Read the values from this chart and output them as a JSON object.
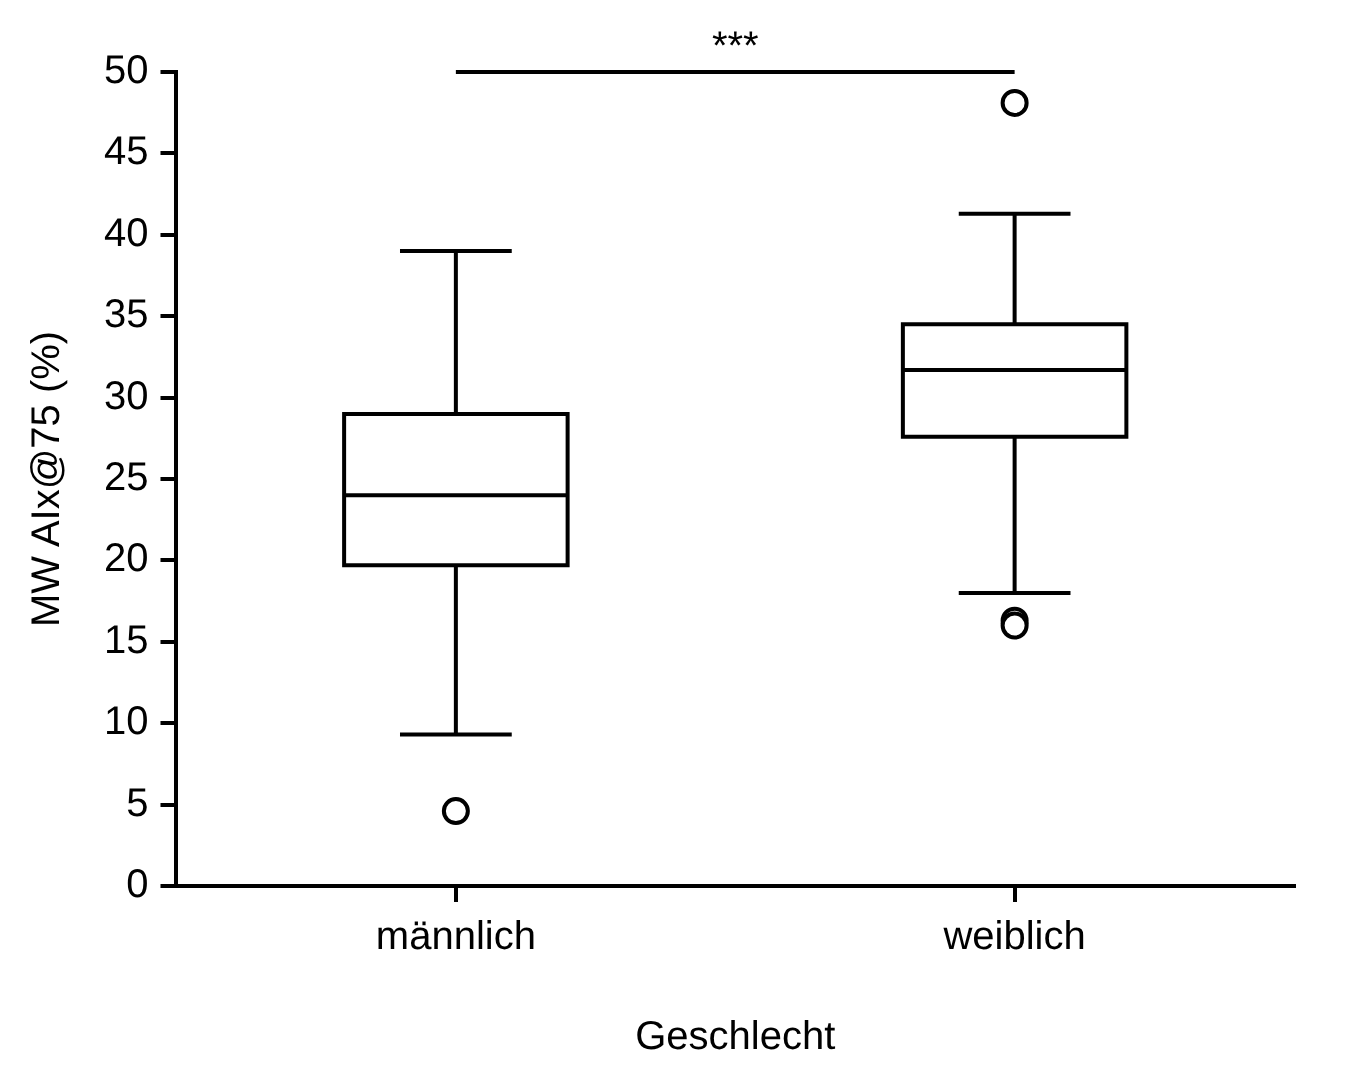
{
  "chart_data": {
    "type": "box",
    "xlabel": "Geschlecht",
    "ylabel": "MW AIx@75 (%)",
    "categories": [
      "männlich",
      "weiblich"
    ],
    "boxes": [
      {
        "low": 9.3,
        "q1": 19.7,
        "median": 24.0,
        "q3": 29.0,
        "high": 39.0,
        "outliers": [
          4.6
        ]
      },
      {
        "low": 18.0,
        "q1": 27.6,
        "median": 31.7,
        "q3": 34.5,
        "high": 41.3,
        "outliers": [
          48.1,
          16.3,
          16.0
        ]
      }
    ],
    "color": "#000000",
    "ylim": [
      0,
      50
    ],
    "yticks": [
      0,
      5,
      10,
      15,
      20,
      25,
      30,
      35,
      40,
      45,
      50
    ],
    "grid": false,
    "legend": false,
    "annotations": [
      "***"
    ]
  }
}
